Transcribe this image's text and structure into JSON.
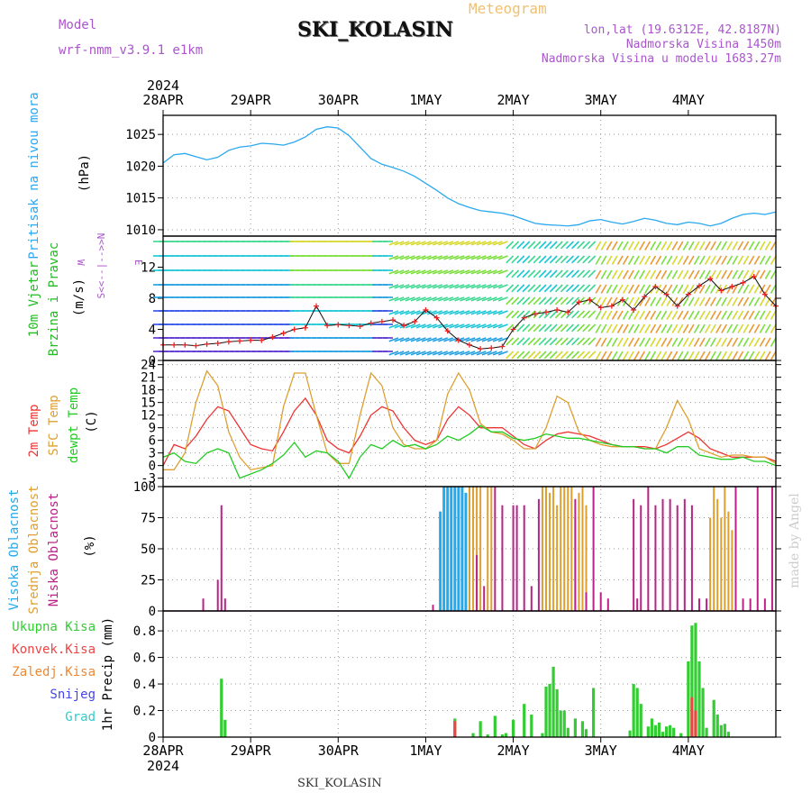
{
  "header": {
    "model_label": "Model",
    "model_version": "wrf-nmm_v3.9.1 e1km",
    "station": "SKI_KOLASIN",
    "meteogram_label": "Meteogram",
    "lonlat": "lon,lat (19.6312E, 42.8187N)",
    "altitude": "Nadmorska Visina 1450m",
    "model_altitude": "Nadmorska Visina u modelu 1683.27m"
  },
  "footer": {
    "station": "SKI_KOLASIN",
    "credit": "made by Angel"
  },
  "time_axis": {
    "year": "2024",
    "labels": [
      "28APR",
      "29APR",
      "30APR",
      "1MAY",
      "2MAY",
      "3MAY",
      "4MAY"
    ]
  },
  "colors": {
    "pressure": "#2aa8f0",
    "temp_2m": "#ee3333",
    "temp_sfc": "#dda030",
    "dewpoint": "#22cc22",
    "cloud_high": "#22aaee",
    "cloud_mid": "#dda030",
    "cloud_low": "#bb2288",
    "precip_total": "#33cc33",
    "precip_conv": "#ee4444",
    "precip_freezing": "#ee8833",
    "snow": "#4444ee",
    "hail": "#33cccc",
    "wind_speed_marker": "#ee2222",
    "wind_speed_line": "#111111"
  },
  "chart_data": [
    {
      "type": "line",
      "panel": "pressure",
      "ylabel_lines": [
        "Pritisak na nivou mora",
        "(hPa)"
      ],
      "yticks": [
        1010,
        1015,
        1020,
        1025
      ],
      "ylim": [
        1009,
        1028
      ],
      "grid": true,
      "x_unit": "hours from 28APR 00:00",
      "series": [
        {
          "x": [
            0,
            3,
            6,
            9,
            12,
            15,
            18,
            21,
            24,
            27,
            30,
            33,
            36,
            39,
            42,
            45,
            48,
            51,
            54,
            57,
            60,
            63,
            66,
            69,
            72,
            75,
            78,
            81,
            84,
            87,
            90,
            93,
            96,
            99,
            102,
            105,
            108,
            111,
            114,
            117,
            120,
            123,
            126,
            129,
            132,
            135,
            138,
            141,
            144,
            147,
            150,
            153,
            156,
            159,
            162,
            165,
            168
          ],
          "values": [
            1020.5,
            1021.8,
            1022.0,
            1021.5,
            1021.0,
            1021.4,
            1022.5,
            1023.0,
            1023.2,
            1023.6,
            1023.5,
            1023.3,
            1023.8,
            1024.6,
            1025.8,
            1026.2,
            1026.0,
            1024.8,
            1023.0,
            1021.2,
            1020.3,
            1019.8,
            1019.2,
            1018.4,
            1017.3,
            1016.2,
            1015.0,
            1014.1,
            1013.5,
            1013.0,
            1012.8,
            1012.6,
            1012.2,
            1011.6,
            1011.0,
            1010.8,
            1010.7,
            1010.6,
            1010.8,
            1011.4,
            1011.6,
            1011.2,
            1010.9,
            1011.3,
            1011.8,
            1011.5,
            1011.0,
            1010.8,
            1011.2,
            1011.0,
            1010.6,
            1011.0,
            1011.8,
            1012.4,
            1012.6,
            1012.4,
            1012.8
          ]
        }
      ]
    },
    {
      "type": "scatter",
      "panel": "wind",
      "ylabel_lines": [
        "10m Vjetar",
        "Brzina i Pravac",
        "(m/s)"
      ],
      "compass_labels": {
        "west": "W",
        "east": "E",
        "north": "N",
        "south": "S"
      },
      "compass_arrows": "<--|-->",
      "yticks": [
        0,
        4,
        8,
        12
      ],
      "ylim": [
        0,
        16
      ],
      "x_unit": "hours from 28APR 00:00",
      "series": [
        {
          "name": "Brzina",
          "x": [
            0,
            3,
            6,
            9,
            12,
            15,
            18,
            21,
            24,
            27,
            30,
            33,
            36,
            39,
            42,
            45,
            48,
            51,
            54,
            57,
            60,
            63,
            66,
            69,
            72,
            75,
            78,
            81,
            84,
            87,
            90,
            93,
            96,
            99,
            102,
            105,
            108,
            111,
            114,
            117,
            120,
            123,
            126,
            129,
            132,
            135,
            138,
            141,
            144,
            147,
            150,
            153,
            156,
            159,
            162,
            165,
            168
          ],
          "values": [
            2.0,
            2.0,
            2.0,
            1.9,
            2.1,
            2.2,
            2.4,
            2.5,
            2.6,
            2.6,
            3.0,
            3.5,
            4.0,
            4.2,
            7.0,
            4.5,
            4.6,
            4.5,
            4.4,
            4.8,
            5.0,
            5.2,
            4.5,
            5.0,
            6.5,
            5.5,
            3.8,
            2.6,
            2.0,
            1.5,
            1.6,
            1.8,
            4.0,
            5.5,
            6.0,
            6.2,
            6.5,
            6.2,
            7.5,
            7.8,
            6.8,
            7.0,
            7.8,
            6.5,
            8.2,
            9.5,
            8.5,
            7.0,
            8.5,
            9.6,
            10.5,
            9.0,
            9.5,
            10.0,
            10.8,
            8.5,
            7.0
          ]
        }
      ]
    },
    {
      "type": "line",
      "panel": "temperature",
      "ylabel_lines": [
        "2m Temp",
        "SFC Temp",
        "dewpt Temp",
        "(C)"
      ],
      "yticks": [
        -3,
        0,
        3,
        6,
        9,
        12,
        15,
        18,
        21,
        24
      ],
      "ylim": [
        -5,
        25
      ],
      "grid": true,
      "x_unit": "hours from 28APR 00:00",
      "series": [
        {
          "name": "2m Temp",
          "x": [
            0,
            3,
            6,
            9,
            12,
            15,
            18,
            21,
            24,
            27,
            30,
            33,
            36,
            39,
            42,
            45,
            48,
            51,
            54,
            57,
            60,
            63,
            66,
            69,
            72,
            75,
            78,
            81,
            84,
            87,
            90,
            93,
            96,
            99,
            102,
            105,
            108,
            111,
            114,
            117,
            120,
            123,
            126,
            129,
            132,
            135,
            138,
            141,
            144,
            147,
            150,
            153,
            156,
            159,
            162,
            165,
            168
          ],
          "values": [
            0.0,
            5.0,
            4.0,
            7.0,
            11.0,
            14.0,
            13.0,
            9.0,
            5.0,
            4.0,
            3.5,
            8.0,
            13.0,
            16.0,
            12.0,
            6.0,
            4.0,
            3.0,
            7.0,
            12.0,
            14.0,
            13.0,
            9.0,
            6.0,
            5.0,
            6.0,
            11.0,
            14.0,
            12.0,
            9.0,
            9.0,
            9.0,
            7.0,
            5.0,
            4.0,
            6.0,
            7.5,
            8.0,
            7.5,
            7.0,
            6.0,
            5.0,
            4.5,
            4.5,
            4.5,
            4.0,
            5.0,
            6.5,
            8.0,
            6.5,
            4.0,
            3.0,
            2.0,
            2.0,
            2.0,
            2.0,
            1.0
          ]
        },
        {
          "name": "SFC Temp",
          "x": [
            0,
            3,
            6,
            9,
            12,
            15,
            18,
            21,
            24,
            27,
            30,
            33,
            36,
            39,
            42,
            45,
            48,
            51,
            54,
            57,
            60,
            63,
            66,
            69,
            72,
            75,
            78,
            81,
            84,
            87,
            90,
            93,
            96,
            99,
            102,
            105,
            108,
            111,
            114,
            117,
            120,
            123,
            126,
            129,
            132,
            135,
            138,
            141,
            144,
            147,
            150,
            153,
            156,
            159,
            162,
            165,
            168
          ],
          "values": [
            -1.0,
            -1.0,
            3.0,
            15.0,
            22.5,
            19.0,
            8.0,
            2.0,
            -1.0,
            -0.5,
            0.0,
            14.0,
            22.0,
            22.0,
            12.0,
            3.0,
            0.5,
            0.5,
            12.0,
            22.0,
            19.0,
            9.0,
            5.0,
            4.0,
            4.0,
            6.0,
            17.0,
            22.0,
            18.0,
            10.0,
            8.0,
            7.5,
            6.0,
            4.0,
            4.0,
            9.0,
            16.5,
            15.0,
            8.0,
            6.0,
            5.0,
            4.5,
            4.5,
            4.5,
            4.0,
            4.0,
            9.0,
            15.5,
            11.0,
            4.0,
            3.0,
            2.0,
            2.5,
            2.5,
            2.0,
            2.0,
            0.5
          ]
        },
        {
          "name": "dewpt Temp",
          "x": [
            0,
            3,
            6,
            9,
            12,
            15,
            18,
            21,
            24,
            27,
            30,
            33,
            36,
            39,
            42,
            45,
            48,
            51,
            54,
            57,
            60,
            63,
            66,
            69,
            72,
            75,
            78,
            81,
            84,
            87,
            90,
            93,
            96,
            99,
            102,
            105,
            108,
            111,
            114,
            117,
            120,
            123,
            126,
            129,
            132,
            135,
            138,
            141,
            144,
            147,
            150,
            153,
            156,
            159,
            162,
            165,
            168
          ],
          "values": [
            2.0,
            3.0,
            1.0,
            0.5,
            3.0,
            4.0,
            3.0,
            -3.0,
            -2.0,
            -1.0,
            0.5,
            2.5,
            5.5,
            2.0,
            3.5,
            3.0,
            1.0,
            -3.0,
            2.0,
            5.0,
            4.0,
            6.0,
            4.5,
            5.0,
            4.0,
            5.0,
            7.0,
            6.0,
            7.5,
            9.5,
            8.0,
            8.0,
            6.5,
            6.0,
            6.5,
            7.5,
            7.0,
            6.5,
            6.5,
            6.0,
            5.5,
            5.0,
            4.5,
            4.5,
            4.0,
            4.0,
            3.0,
            4.5,
            4.5,
            2.5,
            2.0,
            1.5,
            1.5,
            2.0,
            1.0,
            1.0,
            0.0
          ]
        }
      ]
    },
    {
      "type": "bar",
      "panel": "clouds",
      "ylabel_lines": [
        "Visoka Oblacnost",
        "Srednja Oblacnost",
        "Niska Oblacnost",
        "(%)"
      ],
      "yticks": [
        0,
        25,
        50,
        75,
        100
      ],
      "ylim": [
        0,
        100
      ],
      "grid": true,
      "x_unit": "hours from 28APR 00:00",
      "series": [
        {
          "name": "Visoka Oblacnost",
          "x": [
            76,
            77,
            78,
            79,
            80,
            81,
            82,
            83
          ],
          "values": [
            80,
            100,
            100,
            100,
            100,
            100,
            100,
            95
          ]
        },
        {
          "name": "Srednja Oblacnost",
          "x": [
            84,
            85,
            86,
            87,
            89,
            90,
            104,
            105,
            106,
            107,
            108,
            109,
            110,
            111,
            112,
            113,
            114,
            115,
            116,
            150,
            151,
            152,
            153,
            154,
            155,
            156
          ],
          "values": [
            100,
            100,
            100,
            100,
            100,
            100,
            100,
            100,
            95,
            100,
            85,
            100,
            100,
            100,
            100,
            75,
            95,
            100,
            85,
            75,
            100,
            90,
            75,
            100,
            80,
            65
          ]
        },
        {
          "name": "Niska Oblacnost",
          "x": [
            11,
            15,
            16,
            17,
            74,
            86,
            88,
            91,
            93,
            96,
            97,
            99,
            101,
            103,
            113,
            116,
            118,
            120,
            122,
            129,
            130,
            131,
            133,
            135,
            137,
            139,
            141,
            143,
            145,
            147,
            149,
            157,
            159,
            161,
            163,
            165,
            167
          ],
          "values": [
            10,
            25,
            85,
            10,
            5,
            45,
            20,
            100,
            85,
            85,
            85,
            85,
            20,
            90,
            90,
            15,
            100,
            15,
            10,
            90,
            10,
            85,
            100,
            85,
            90,
            90,
            85,
            90,
            85,
            10,
            10,
            100,
            10,
            10,
            100,
            10,
            100
          ]
        }
      ]
    },
    {
      "type": "bar",
      "panel": "precipitation",
      "ylabel_lines": [
        "1hr Precip (mm)"
      ],
      "legend": [
        "Ukupna Kisa",
        "Konvek.Kisa",
        "Zaledj.Kisa",
        "Snijeg",
        "Grad"
      ],
      "yticks": [
        0,
        0.2,
        0.4,
        0.6,
        0.8
      ],
      "ylim": [
        0,
        0.95
      ],
      "grid": true,
      "x_unit": "hours from 28APR 00:00",
      "series": [
        {
          "name": "Ukupna Kisa",
          "x": [
            16,
            17,
            80,
            85,
            87,
            89,
            91,
            93,
            94,
            96,
            99,
            101,
            104,
            105,
            106,
            107,
            108,
            109,
            110,
            111,
            113,
            115,
            116,
            118,
            128,
            129,
            130,
            131,
            133,
            134,
            135,
            136,
            137,
            138,
            139,
            140,
            142,
            144,
            145,
            146,
            147,
            148,
            149,
            151,
            152,
            153,
            154,
            155
          ],
          "values": [
            0.44,
            0.13,
            0.14,
            0.03,
            0.12,
            0.02,
            0.16,
            0.02,
            0.03,
            0.13,
            0.25,
            0.17,
            0.03,
            0.38,
            0.4,
            0.53,
            0.36,
            0.2,
            0.2,
            0.07,
            0.14,
            0.12,
            0.06,
            0.37,
            0.05,
            0.4,
            0.37,
            0.25,
            0.08,
            0.14,
            0.09,
            0.11,
            0.04,
            0.08,
            0.09,
            0.07,
            0.03,
            0.57,
            0.84,
            0.86,
            0.57,
            0.37,
            0.07,
            0.28,
            0.17,
            0.09,
            0.1,
            0.04
          ]
        },
        {
          "name": "Konvek.Kisa",
          "x": [
            80,
            145,
            146
          ],
          "values": [
            0.12,
            0.3,
            0.2
          ]
        }
      ]
    }
  ]
}
